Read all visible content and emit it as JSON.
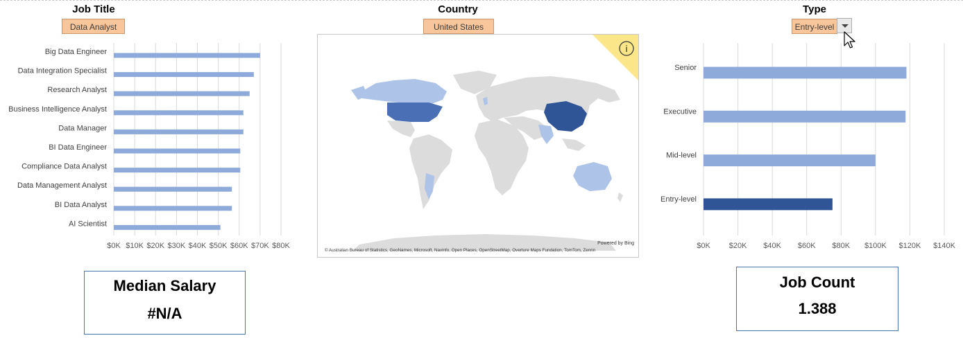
{
  "filters": {
    "job_title": {
      "label": "Job Title",
      "value": "Data Analyst"
    },
    "country": {
      "label": "Country",
      "value": "United States"
    },
    "type": {
      "label": "Type",
      "value": "Entry-level"
    }
  },
  "map": {
    "attribution": "© Australian Bureau of Statistics, GeoNames, Microsoft, Navinfo, Open Places, OpenStreetMap, Overture Maps Fundation, TomTom, Zenrin",
    "powered_by": "Powered by Bing",
    "info_icon": "i"
  },
  "kpis": {
    "median_salary": {
      "title": "Median Salary",
      "value": "#N/A"
    },
    "job_count": {
      "title": "Job Count",
      "value": "1.388"
    }
  },
  "chart_data": [
    {
      "type": "bar",
      "orientation": "horizontal",
      "categories": [
        "Big Data Engineer",
        "Data Integration Specialist",
        "Research Analyst",
        "Business Intelligence Analyst",
        "Data Manager",
        "BI Data Engineer",
        "Compliance Data Analyst",
        "Data Management Analyst",
        "BI Data Analyst",
        "AI Scientist"
      ],
      "values": [
        70000,
        67000,
        65000,
        62000,
        62000,
        60500,
        60500,
        56500,
        56500,
        51000
      ],
      "xlim": [
        0,
        80000
      ],
      "xticks": [
        "$0K",
        "$10K",
        "$20K",
        "$30K",
        "$40K",
        "$50K",
        "$60K",
        "$70K",
        "$80K"
      ],
      "grid": true,
      "color": "#8eaadb"
    },
    {
      "type": "bar",
      "orientation": "horizontal",
      "categories": [
        "Senior",
        "Executive",
        "Mid-level",
        "Entry-level"
      ],
      "values": [
        118000,
        117500,
        100000,
        75000
      ],
      "highlight": "Entry-level",
      "xlim": [
        0,
        140000
      ],
      "xticks": [
        "$0K",
        "$20K",
        "$40K",
        "$60K",
        "$80K",
        "$100K",
        "$120K",
        "$140K"
      ],
      "grid": true,
      "color": "#8eaadb",
      "highlight_color": "#2f5597"
    }
  ]
}
